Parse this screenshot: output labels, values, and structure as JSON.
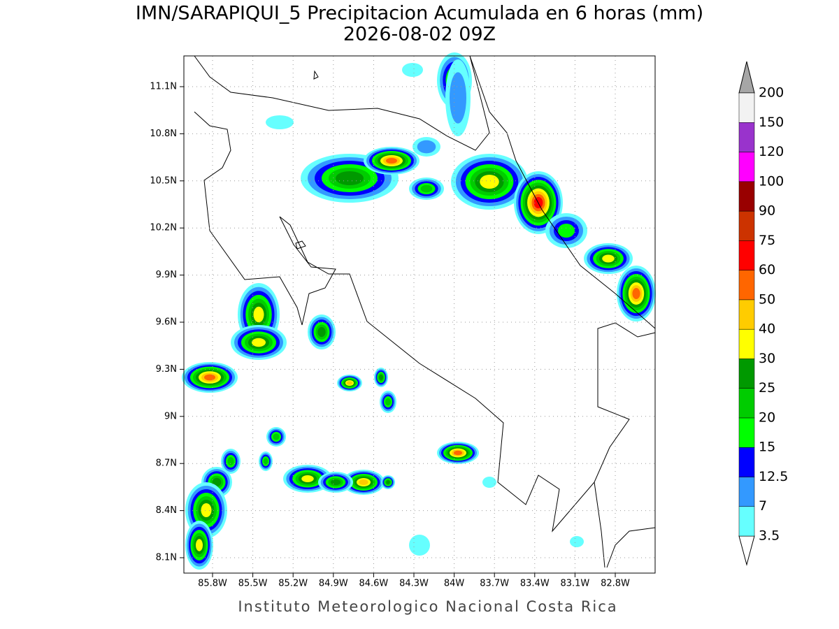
{
  "title": "IMN/SARAPIQUI_5 Precipitacion Acumulada en 6 horas (mm)",
  "subtitle": "2026-08-02 09Z",
  "x_labels": [
    "85.8W",
    "85.5W",
    "85.2W",
    "84.9W",
    "84.6W",
    "84.3W",
    "84W",
    "83.7W",
    "83.4W",
    "83.1W",
    "82.8W"
  ],
  "y_labels": [
    "11.1N",
    "10.8N",
    "10.5N",
    "10.2N",
    "9.9N",
    "9.6N",
    "9.3N",
    "9N",
    "8.7N",
    "8.4N",
    "8.1N"
  ],
  "colorbar": {
    "levels": [
      3.5,
      7,
      12.5,
      15,
      20,
      25,
      30,
      40,
      50,
      60,
      75,
      90,
      100,
      120,
      150,
      200
    ],
    "colors": [
      "#66ffff",
      "#3399ff",
      "#0000ff",
      "#00ff00",
      "#00cc00",
      "#009900",
      "#ffff00",
      "#ffcc00",
      "#ff6600",
      "#ff0000",
      "#cc3300",
      "#990000",
      "#ff00ff",
      "#9933cc",
      "#f2f2f2"
    ],
    "under_color": "#ffffff",
    "over_color": "#a6a6a6"
  },
  "footer": "Instituto Meteorologico Nacional Costa Rica"
}
